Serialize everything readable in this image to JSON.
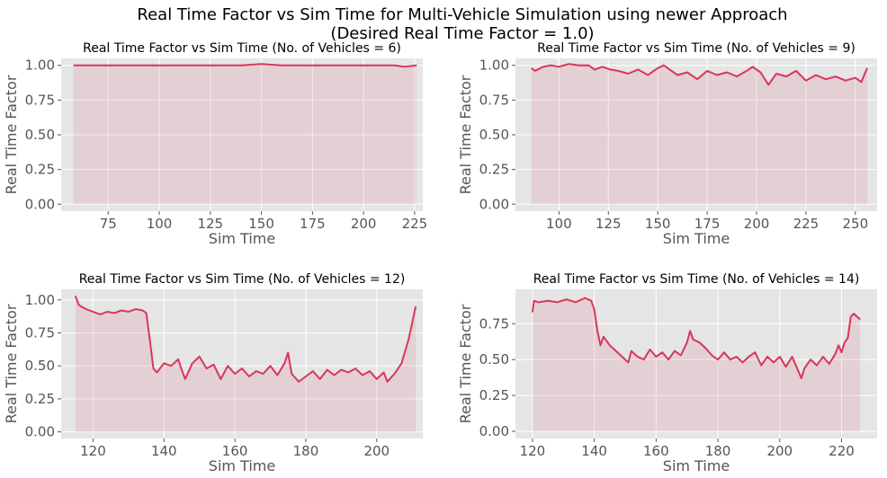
{
  "figure": {
    "title_line1": "Real Time Factor vs Sim Time for Multi-Vehicle Simulation using newer Approach",
    "title_line2": "(Desired Real Time Factor = 1.0)",
    "style": {
      "background": "#e5e5e5",
      "grid": "#ffffff",
      "line": "#d9365a",
      "fill": "#d9365a"
    }
  },
  "chart_data": [
    {
      "type": "area",
      "title": "Real Time Factor vs Sim Time (No. of Vehicles = 6)",
      "xlabel": "Sim Time",
      "ylabel": "Real Time Factor",
      "xlim": [
        52,
        229
      ],
      "ylim": [
        -0.05,
        1.05
      ],
      "xticks": [
        75,
        100,
        125,
        150,
        175,
        200,
        225
      ],
      "yticks": [
        0.0,
        0.25,
        0.5,
        0.75,
        1.0
      ],
      "grid": true,
      "x": [
        58,
        80,
        100,
        120,
        140,
        150,
        160,
        180,
        200,
        215,
        220,
        226
      ],
      "y": [
        1.0,
        1.0,
        1.0,
        1.0,
        1.0,
        1.01,
        1.0,
        1.0,
        1.0,
        1.0,
        0.99,
        1.0
      ]
    },
    {
      "type": "area",
      "title": "Real Time Factor vs Sim Time  (No. of Vehicles = 9)",
      "xlabel": "Sim Time",
      "ylabel": "Real Time Factor",
      "xlim": [
        78,
        261
      ],
      "ylim": [
        -0.05,
        1.05
      ],
      "xticks": [
        100,
        125,
        150,
        175,
        200,
        225,
        250
      ],
      "yticks": [
        0.0,
        0.25,
        0.5,
        0.75,
        1.0
      ],
      "grid": true,
      "x": [
        86,
        88,
        92,
        96,
        100,
        105,
        110,
        115,
        118,
        122,
        126,
        130,
        135,
        140,
        145,
        150,
        153,
        157,
        160,
        165,
        170,
        175,
        180,
        185,
        190,
        195,
        198,
        202,
        206,
        210,
        215,
        220,
        225,
        230,
        235,
        240,
        245,
        250,
        253,
        256
      ],
      "y": [
        0.98,
        0.96,
        0.99,
        1.0,
        0.99,
        1.01,
        1.0,
        1.0,
        0.97,
        0.99,
        0.97,
        0.96,
        0.94,
        0.97,
        0.93,
        0.98,
        1.0,
        0.96,
        0.93,
        0.95,
        0.9,
        0.96,
        0.93,
        0.95,
        0.92,
        0.96,
        0.99,
        0.95,
        0.86,
        0.94,
        0.92,
        0.96,
        0.89,
        0.93,
        0.9,
        0.92,
        0.89,
        0.91,
        0.88,
        0.98
      ]
    },
    {
      "type": "area",
      "title": "Real Time Factor vs Sim Time  (No. of Vehicles = 12)",
      "xlabel": "Sim Time",
      "ylabel": "Real Time Factor",
      "xlim": [
        111,
        213
      ],
      "ylim": [
        -0.05,
        1.08
      ],
      "xticks": [
        120,
        140,
        160,
        180,
        200
      ],
      "yticks": [
        0.0,
        0.25,
        0.5,
        0.75,
        1.0
      ],
      "grid": true,
      "x": [
        115,
        116,
        118,
        120,
        122,
        124,
        126,
        128,
        130,
        132,
        134,
        135,
        136,
        137,
        138,
        140,
        142,
        144,
        145,
        146,
        148,
        150,
        152,
        154,
        156,
        158,
        160,
        162,
        164,
        166,
        168,
        170,
        172,
        174,
        175,
        176,
        178,
        180,
        182,
        184,
        186,
        188,
        190,
        192,
        194,
        196,
        198,
        200,
        202,
        203,
        205,
        207,
        209,
        211
      ],
      "y": [
        1.03,
        0.96,
        0.93,
        0.91,
        0.89,
        0.91,
        0.9,
        0.92,
        0.91,
        0.93,
        0.92,
        0.9,
        0.7,
        0.48,
        0.45,
        0.52,
        0.5,
        0.55,
        0.47,
        0.4,
        0.52,
        0.57,
        0.48,
        0.51,
        0.4,
        0.5,
        0.44,
        0.48,
        0.42,
        0.46,
        0.44,
        0.5,
        0.43,
        0.52,
        0.6,
        0.44,
        0.38,
        0.42,
        0.46,
        0.4,
        0.47,
        0.43,
        0.47,
        0.45,
        0.48,
        0.43,
        0.46,
        0.4,
        0.45,
        0.38,
        0.44,
        0.52,
        0.7,
        0.95
      ]
    },
    {
      "type": "area",
      "title": "Real Time Factor vs Sim Time  (No. of Vehicles = 14)",
      "xlabel": "Sim Time",
      "ylabel": "Real Time Factor",
      "xlim": [
        114.5,
        231.5
      ],
      "ylim": [
        -0.05,
        0.99
      ],
      "xticks": [
        120,
        140,
        160,
        180,
        200,
        220
      ],
      "yticks": [
        0.0,
        0.25,
        0.5,
        0.75
      ],
      "grid": true,
      "x": [
        120,
        120.5,
        122,
        125,
        128,
        131,
        134,
        137,
        139,
        140,
        141,
        142,
        143,
        145,
        147,
        149,
        151,
        152,
        154,
        156,
        158,
        160,
        162,
        164,
        166,
        168,
        170,
        171,
        172,
        174,
        176,
        178,
        180,
        182,
        184,
        186,
        188,
        190,
        192,
        194,
        196,
        198,
        200,
        202,
        204,
        206,
        207,
        208,
        210,
        212,
        214,
        216,
        218,
        219,
        220,
        221,
        222,
        223,
        224,
        226
      ],
      "y": [
        0.83,
        0.91,
        0.9,
        0.91,
        0.9,
        0.92,
        0.9,
        0.93,
        0.91,
        0.85,
        0.7,
        0.6,
        0.66,
        0.6,
        0.56,
        0.52,
        0.48,
        0.56,
        0.52,
        0.5,
        0.57,
        0.52,
        0.55,
        0.5,
        0.56,
        0.53,
        0.62,
        0.7,
        0.64,
        0.62,
        0.58,
        0.53,
        0.5,
        0.55,
        0.5,
        0.52,
        0.48,
        0.52,
        0.55,
        0.46,
        0.52,
        0.48,
        0.52,
        0.45,
        0.52,
        0.42,
        0.37,
        0.44,
        0.5,
        0.46,
        0.52,
        0.47,
        0.54,
        0.6,
        0.55,
        0.62,
        0.65,
        0.8,
        0.82,
        0.78
      ]
    }
  ]
}
